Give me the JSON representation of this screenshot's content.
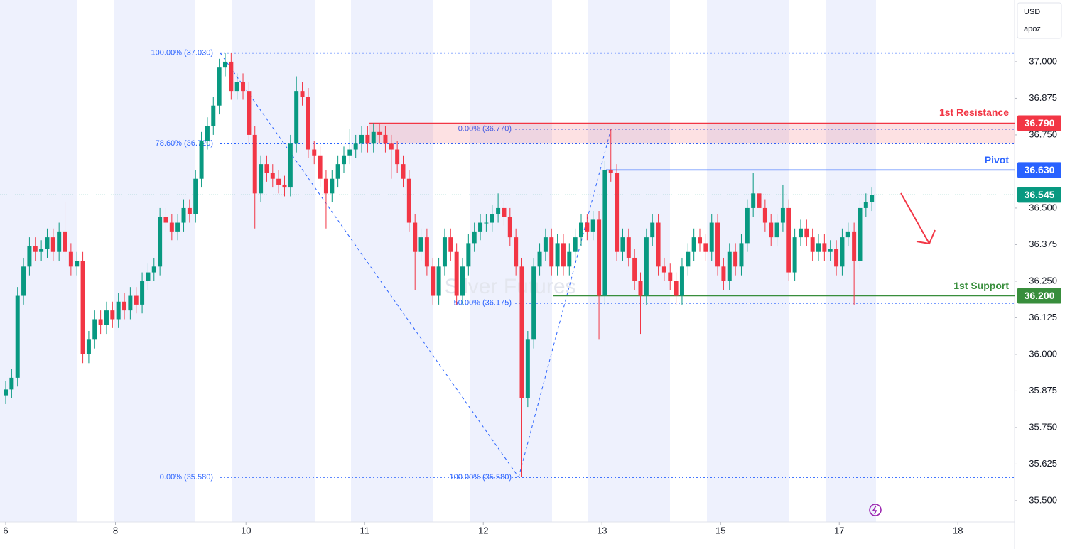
{
  "chart_data": {
    "type": "candlestick",
    "currency": "USD",
    "account": "apoz",
    "watermark": "Silver Futures",
    "up_color": "#089981",
    "down_color": "#f23645",
    "xlim": [
      -0.96,
      170.05
    ],
    "xticks": [
      {
        "value": 0,
        "label": "6"
      },
      {
        "value": 18.5,
        "label": "8"
      },
      {
        "value": 40.5,
        "label": "10"
      },
      {
        "value": 60.5,
        "label": "11"
      },
      {
        "value": 80.5,
        "label": "12"
      },
      {
        "value": 100.5,
        "label": "13"
      },
      {
        "value": 120.5,
        "label": "15"
      },
      {
        "value": 140.5,
        "label": "17"
      },
      {
        "value": 160.5,
        "label": "18"
      }
    ],
    "ylim": [
      35.427,
      37.211
    ],
    "yticks": [
      {
        "value": 35.5,
        "label": "35.500"
      },
      {
        "value": 35.625,
        "label": "35.625"
      },
      {
        "value": 35.75,
        "label": "35.750"
      },
      {
        "value": 35.875,
        "label": "35.875"
      },
      {
        "value": 36.0,
        "label": "36.000"
      },
      {
        "value": 36.125,
        "label": "36.125"
      },
      {
        "value": 36.25,
        "label": "36.250"
      },
      {
        "value": 36.375,
        "label": "36.375"
      },
      {
        "value": 36.5,
        "label": "36.500"
      },
      {
        "value": 36.75,
        "label": "36.750"
      },
      {
        "value": 36.875,
        "label": "36.875"
      },
      {
        "value": 37.0,
        "label": "37.000"
      }
    ],
    "open": [
      35.86,
      35.88,
      35.92,
      36.2,
      36.3,
      36.37,
      36.35,
      36.36,
      36.4,
      36.35,
      36.42,
      36.35,
      36.3,
      36.32,
      36.0,
      36.05,
      36.12,
      36.1,
      36.15,
      36.12,
      36.18,
      36.15,
      36.2,
      36.17,
      36.25,
      36.28,
      36.3,
      36.47,
      36.45,
      36.42,
      36.45,
      36.5,
      36.48,
      36.6,
      36.73,
      36.78,
      36.85,
      36.98,
      37.0,
      36.9,
      36.93,
      36.9,
      36.75,
      36.55,
      36.65,
      36.62,
      36.6,
      36.58,
      36.57,
      36.72,
      36.9,
      36.88,
      36.7,
      36.68,
      36.6,
      36.55,
      36.6,
      36.65,
      36.68,
      36.7,
      36.72,
      36.75,
      36.72,
      36.76,
      36.75,
      36.72,
      36.7,
      36.65,
      36.6,
      36.45,
      36.35,
      36.4,
      36.3,
      36.2,
      36.3,
      36.4,
      36.35,
      36.2,
      36.3,
      36.38,
      36.42,
      36.45,
      36.45,
      36.48,
      36.5,
      36.47,
      36.4,
      36.3,
      35.85,
      36.05,
      36.3,
      36.35,
      36.4,
      36.3,
      36.38,
      36.3,
      36.35,
      36.4,
      36.45,
      36.42,
      36.46,
      36.2,
      36.63,
      36.62,
      36.35,
      36.4,
      36.33,
      36.25,
      36.2,
      36.4,
      36.45,
      36.3,
      36.28,
      36.25,
      36.2,
      36.3,
      36.35,
      36.4,
      36.38,
      36.35,
      36.45,
      36.3,
      36.25,
      36.35,
      36.3,
      36.38,
      36.5,
      36.55,
      36.5,
      36.45,
      36.4,
      36.45,
      36.5,
      36.28,
      36.4,
      36.43,
      36.4,
      36.35,
      36.38,
      36.35,
      36.36,
      36.3,
      36.4,
      36.42,
      36.32,
      36.5,
      36.52
    ],
    "high": [
      35.91,
      35.95,
      36.23,
      36.33,
      36.4,
      36.4,
      36.39,
      36.43,
      36.43,
      36.45,
      36.52,
      36.38,
      36.35,
      36.35,
      36.08,
      36.15,
      36.15,
      36.18,
      36.18,
      36.21,
      36.21,
      36.23,
      36.23,
      36.28,
      36.31,
      36.33,
      36.5,
      36.5,
      36.48,
      36.48,
      36.53,
      36.53,
      36.63,
      36.76,
      36.81,
      36.88,
      37.01,
      37.03,
      37.03,
      36.96,
      36.96,
      36.93,
      36.78,
      36.68,
      36.68,
      36.65,
      36.63,
      36.61,
      36.75,
      36.95,
      36.93,
      36.91,
      36.73,
      36.71,
      36.63,
      36.63,
      36.68,
      36.71,
      36.77,
      36.75,
      36.78,
      36.78,
      36.79,
      36.79,
      36.78,
      36.75,
      36.73,
      36.68,
      36.63,
      36.48,
      36.43,
      36.43,
      36.33,
      36.33,
      36.43,
      36.43,
      36.38,
      36.33,
      36.41,
      36.45,
      36.48,
      36.48,
      36.51,
      36.55,
      36.53,
      36.5,
      36.43,
      36.33,
      36.08,
      36.33,
      36.38,
      36.43,
      36.43,
      36.41,
      36.41,
      36.38,
      36.43,
      36.48,
      36.48,
      36.49,
      36.49,
      36.66,
      36.77,
      36.65,
      36.43,
      36.43,
      36.36,
      36.28,
      36.43,
      36.48,
      36.48,
      36.33,
      36.31,
      36.28,
      36.33,
      36.38,
      36.43,
      36.43,
      36.41,
      36.48,
      36.48,
      36.33,
      36.38,
      36.38,
      36.41,
      36.53,
      36.62,
      36.58,
      36.53,
      36.48,
      36.48,
      36.58,
      36.53,
      36.43,
      36.46,
      36.46,
      36.43,
      36.41,
      36.41,
      36.39,
      36.39,
      36.43,
      36.45,
      36.45,
      36.53,
      36.55,
      36.57
    ],
    "low": [
      35.83,
      35.85,
      35.89,
      36.17,
      36.27,
      36.32,
      36.32,
      36.33,
      36.32,
      36.32,
      36.32,
      36.27,
      36.27,
      35.97,
      35.97,
      36.02,
      36.07,
      36.07,
      36.09,
      36.09,
      36.12,
      36.12,
      36.14,
      36.14,
      36.22,
      36.25,
      36.27,
      36.42,
      36.39,
      36.39,
      36.42,
      36.45,
      36.45,
      36.57,
      36.7,
      36.75,
      36.82,
      36.95,
      36.87,
      36.87,
      36.87,
      36.72,
      36.43,
      36.52,
      36.59,
      36.57,
      36.55,
      36.54,
      36.54,
      36.69,
      36.85,
      36.67,
      36.65,
      36.57,
      36.43,
      36.52,
      36.57,
      36.62,
      36.65,
      36.67,
      36.69,
      36.69,
      36.69,
      36.72,
      36.69,
      36.6,
      36.62,
      36.57,
      36.42,
      36.22,
      36.32,
      36.27,
      36.17,
      36.17,
      36.27,
      36.32,
      36.17,
      36.17,
      36.27,
      36.35,
      36.39,
      36.42,
      36.42,
      36.45,
      36.44,
      36.37,
      36.27,
      35.58,
      35.82,
      36.02,
      36.27,
      36.32,
      36.27,
      36.27,
      36.27,
      36.27,
      36.32,
      36.37,
      36.39,
      36.39,
      36.05,
      36.17,
      36.59,
      36.32,
      36.32,
      36.3,
      36.22,
      36.07,
      36.17,
      36.37,
      36.27,
      36.25,
      36.22,
      36.17,
      36.17,
      36.27,
      36.32,
      36.35,
      36.32,
      36.32,
      36.27,
      36.22,
      36.22,
      36.27,
      36.27,
      36.35,
      36.47,
      36.47,
      36.42,
      36.37,
      36.37,
      36.42,
      36.25,
      36.25,
      36.37,
      36.37,
      36.32,
      36.32,
      36.32,
      36.32,
      36.27,
      36.27,
      36.37,
      36.17,
      36.29,
      36.47,
      36.49
    ],
    "close": [
      35.88,
      35.92,
      36.2,
      36.3,
      36.37,
      36.35,
      36.36,
      36.4,
      36.35,
      36.42,
      36.35,
      36.3,
      36.32,
      36.0,
      36.05,
      36.12,
      36.1,
      36.15,
      36.12,
      36.18,
      36.15,
      36.2,
      36.17,
      36.25,
      36.28,
      36.3,
      36.47,
      36.45,
      36.42,
      36.45,
      36.5,
      36.48,
      36.6,
      36.73,
      36.78,
      36.85,
      36.98,
      37.0,
      36.9,
      36.93,
      36.9,
      36.75,
      36.55,
      36.65,
      36.62,
      36.6,
      36.58,
      36.57,
      36.72,
      36.9,
      36.88,
      36.7,
      36.68,
      36.6,
      36.55,
      36.6,
      36.65,
      36.68,
      36.7,
      36.72,
      36.75,
      36.72,
      36.76,
      36.75,
      36.72,
      36.7,
      36.65,
      36.6,
      36.45,
      36.35,
      36.4,
      36.3,
      36.2,
      36.3,
      36.4,
      36.35,
      36.2,
      36.3,
      36.38,
      36.42,
      36.45,
      36.45,
      36.48,
      36.5,
      36.47,
      36.4,
      36.3,
      35.85,
      36.05,
      36.3,
      36.35,
      36.4,
      36.3,
      36.38,
      36.3,
      36.35,
      36.4,
      36.45,
      36.42,
      36.46,
      36.2,
      36.63,
      36.62,
      36.35,
      36.4,
      36.33,
      36.25,
      36.2,
      36.4,
      36.45,
      36.3,
      36.28,
      36.25,
      36.2,
      36.3,
      36.35,
      36.4,
      36.38,
      36.35,
      36.45,
      36.3,
      36.25,
      36.35,
      36.3,
      36.38,
      36.5,
      36.55,
      36.5,
      36.45,
      36.4,
      36.45,
      36.5,
      36.28,
      36.4,
      36.43,
      36.4,
      36.35,
      36.38,
      36.35,
      36.36,
      36.3,
      36.4,
      36.42,
      36.32,
      36.5,
      36.52,
      36.545
    ],
    "last_price": {
      "value": 36.545,
      "label": "36.545",
      "color": "#089981"
    },
    "levels": [
      {
        "name": "1st Resistance",
        "value": 36.79,
        "label": "36.790",
        "color": "#f23645",
        "low": 36.72
      },
      {
        "name": "Pivot",
        "value": 36.63,
        "label": "36.630",
        "color": "#2962ff"
      },
      {
        "name": "1st Support",
        "value": 36.2,
        "label": "36.200",
        "color": "#388e3c"
      }
    ],
    "fibs": [
      {
        "levels": [
          {
            "label": "100.00% (37.030)",
            "value": 37.03
          },
          {
            "label": "78.60% (36.720)",
            "value": 36.72
          },
          {
            "label": "0.00% (35.580)",
            "value": 35.58
          }
        ]
      },
      {
        "levels": [
          {
            "label": "0.00% (36.770)",
            "value": 36.77
          },
          {
            "label": "50.00% (36.175)",
            "value": 36.175
          },
          {
            "label": "100.00% (35.580)",
            "value": 35.58
          }
        ]
      }
    ]
  }
}
